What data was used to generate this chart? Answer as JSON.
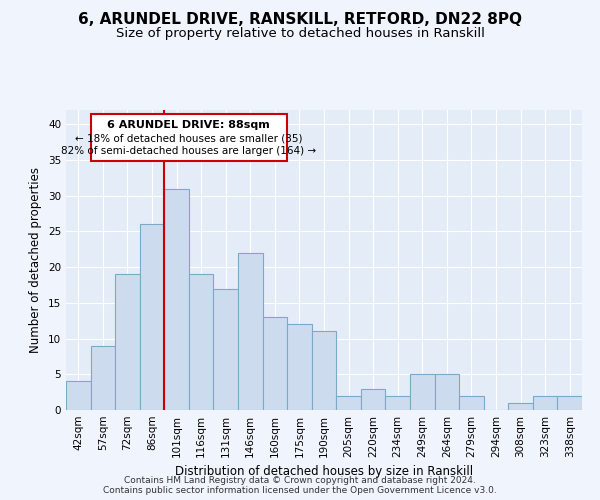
{
  "title": "6, ARUNDEL DRIVE, RANSKILL, RETFORD, DN22 8PQ",
  "subtitle": "Size of property relative to detached houses in Ranskill",
  "xlabel": "Distribution of detached houses by size in Ranskill",
  "ylabel": "Number of detached properties",
  "categories": [
    "42sqm",
    "57sqm",
    "72sqm",
    "86sqm",
    "101sqm",
    "116sqm",
    "131sqm",
    "146sqm",
    "160sqm",
    "175sqm",
    "190sqm",
    "205sqm",
    "220sqm",
    "234sqm",
    "249sqm",
    "264sqm",
    "279sqm",
    "294sqm",
    "308sqm",
    "323sqm",
    "338sqm"
  ],
  "values": [
    4,
    9,
    19,
    26,
    31,
    19,
    17,
    22,
    13,
    12,
    11,
    2,
    3,
    2,
    5,
    5,
    2,
    0,
    1,
    2,
    2
  ],
  "bar_color": "#ccdcee",
  "bar_edge_color": "#7aaac8",
  "vline_x": 3.5,
  "vline_color": "#cc0000",
  "ylim": [
    0,
    42
  ],
  "yticks": [
    0,
    5,
    10,
    15,
    20,
    25,
    30,
    35,
    40
  ],
  "annotation_title": "6 ARUNDEL DRIVE: 88sqm",
  "annotation_line1": "← 18% of detached houses are smaller (35)",
  "annotation_line2": "82% of semi-detached houses are larger (164) →",
  "annotation_box_color": "#cc0000",
  "footer_line1": "Contains HM Land Registry data © Crown copyright and database right 2024.",
  "footer_line2": "Contains public sector information licensed under the Open Government Licence v3.0.",
  "bg_color": "#f0f4fc",
  "plot_bg_color": "#e4ecf8",
  "grid_color": "#ffffff",
  "title_fontsize": 11,
  "subtitle_fontsize": 9.5,
  "axis_label_fontsize": 8.5,
  "tick_fontsize": 7.5,
  "footer_fontsize": 6.5
}
